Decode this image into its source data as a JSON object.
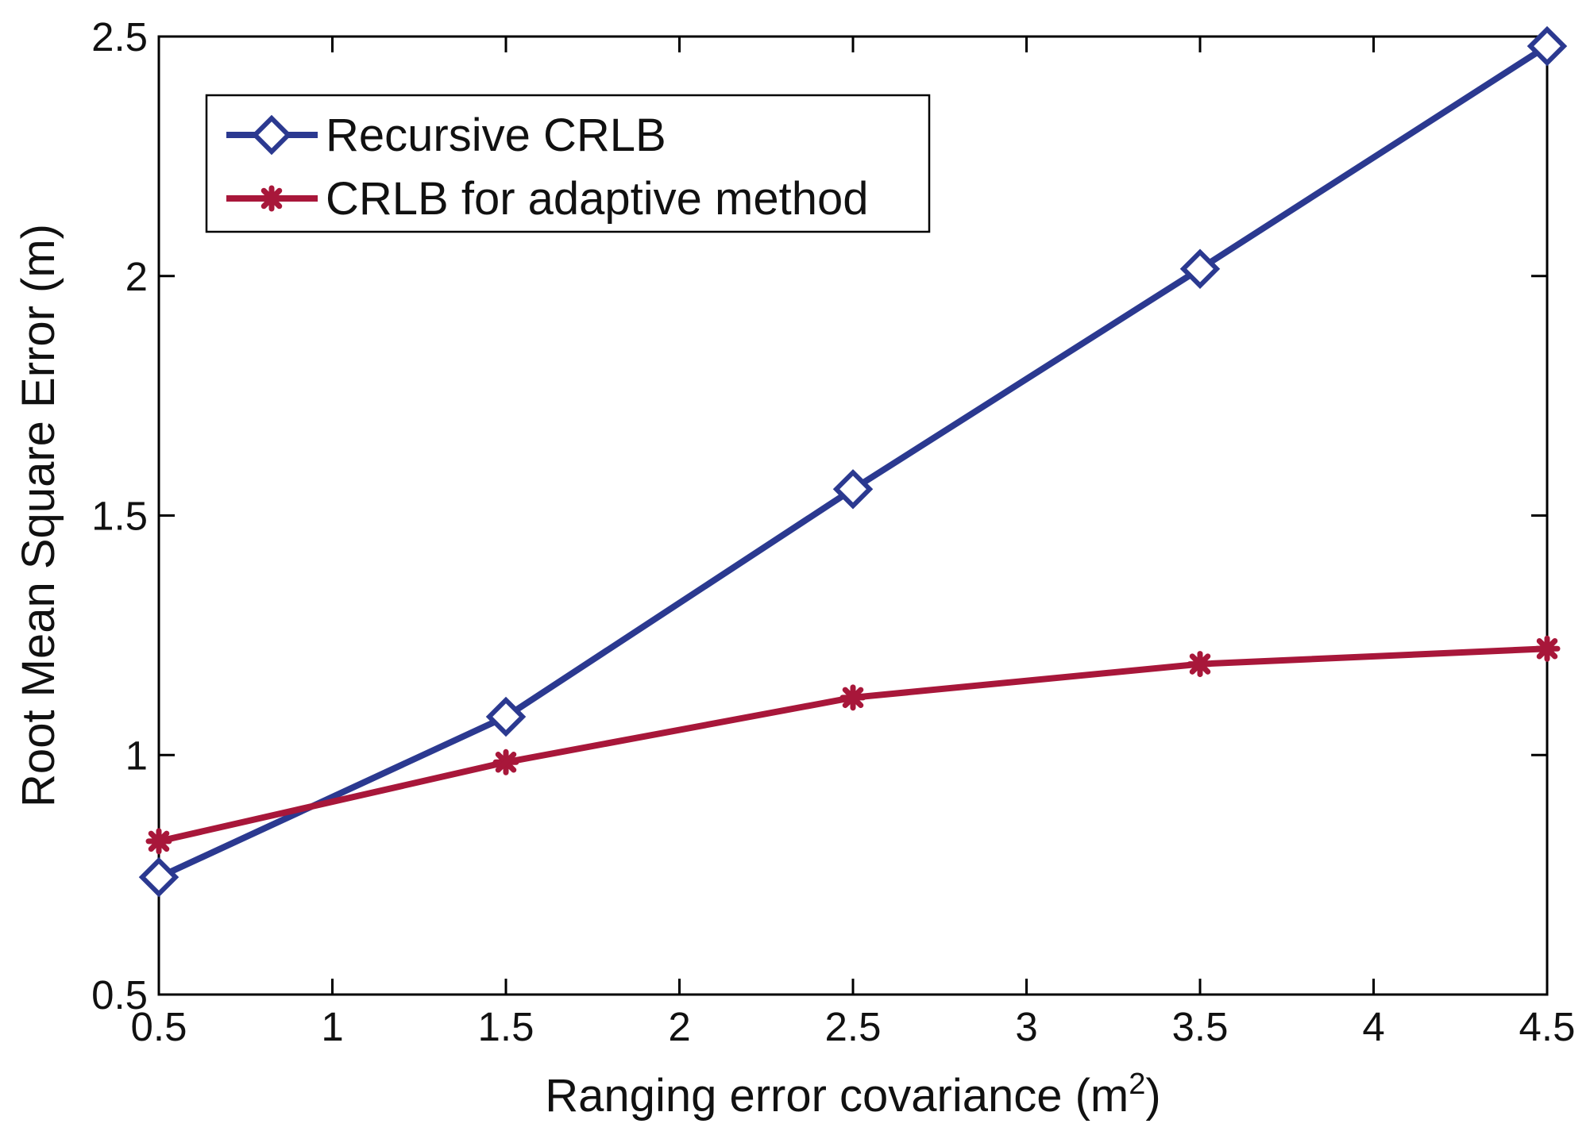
{
  "chart_data": {
    "type": "line",
    "title": "",
    "xlabel": "Ranging error covariance (m",
    "xlabel_sup": "2",
    "xlabel_suffix": ")",
    "ylabel": "Root Mean Square Error (m)",
    "xlim": [
      0.5,
      4.5
    ],
    "ylim": [
      0.5,
      2.5
    ],
    "x_ticks": [
      0.5,
      1,
      1.5,
      2,
      2.5,
      3,
      3.5,
      4,
      4.5
    ],
    "x_tick_labels": [
      "0.5",
      "1",
      "1.5",
      "2",
      "2.5",
      "3",
      "3.5",
      "4",
      "4.5"
    ],
    "y_ticks": [
      0.5,
      1,
      1.5,
      2,
      2.5
    ],
    "y_tick_labels": [
      "0.5",
      "1",
      "1.5",
      "2",
      "2.5"
    ],
    "grid": false,
    "legend_position": "top-left",
    "x": [
      0.5,
      1.5,
      2.5,
      3.5,
      4.5
    ],
    "series": [
      {
        "name": "Recursive CRLB",
        "values": [
          0.745,
          1.08,
          1.555,
          2.015,
          2.48
        ],
        "color": "#2b3990",
        "marker": "diamond"
      },
      {
        "name": "CRLB for adaptive method",
        "values": [
          0.82,
          0.985,
          1.12,
          1.19,
          1.222
        ],
        "color": "#a8173a",
        "marker": "asterisk"
      }
    ]
  }
}
